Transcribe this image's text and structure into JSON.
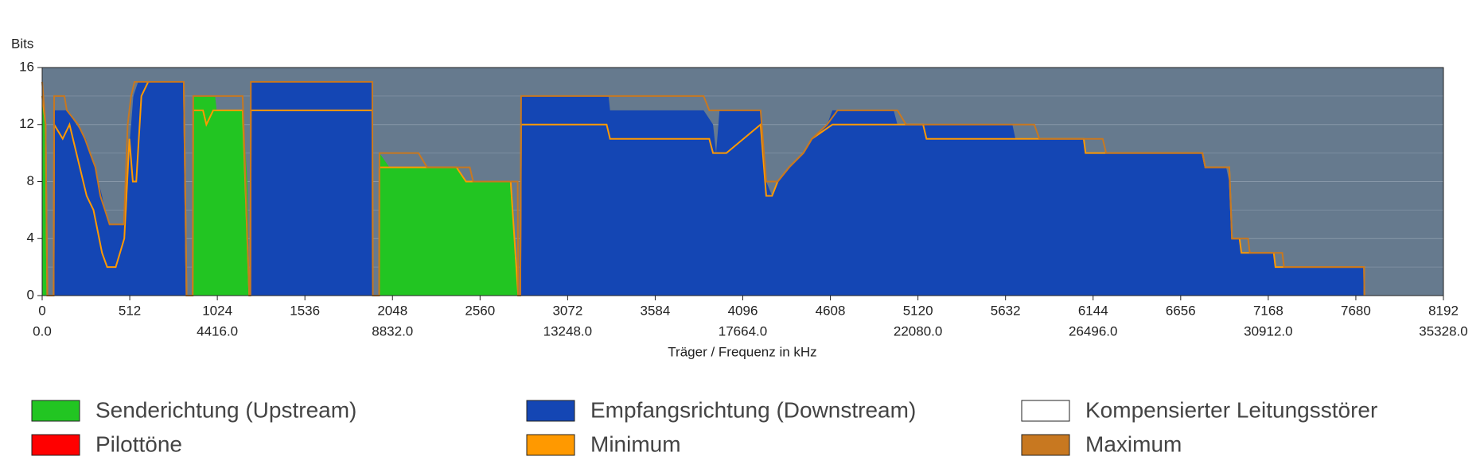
{
  "chart_data": {
    "type": "area",
    "ylabel": "Bits",
    "xlabel": "Träger / Frequenz in kHz",
    "xlim": [
      0,
      8192
    ],
    "xticks": [
      0,
      512,
      1024,
      1536,
      2048,
      2560,
      3072,
      3584,
      4096,
      4608,
      5120,
      5632,
      6144,
      6656,
      7168,
      7680,
      8192
    ],
    "x2lim": [
      0,
      35328
    ],
    "x2ticks": [
      {
        "value": 0,
        "label": "0.0"
      },
      {
        "value": 4416,
        "label": "4416.0"
      },
      {
        "value": 8832,
        "label": "8832.0"
      },
      {
        "value": 13248,
        "label": "13248.0"
      },
      {
        "value": 17664,
        "label": "17664.0"
      },
      {
        "value": 22080,
        "label": "22080.0"
      },
      {
        "value": 26496,
        "label": "26496.0"
      },
      {
        "value": 30912,
        "label": "30912.0"
      },
      {
        "value": 35328,
        "label": "35328.0"
      }
    ],
    "ylim": [
      0,
      16
    ],
    "yticks": [
      0,
      4,
      8,
      12,
      16
    ],
    "yminorticks": [
      2,
      6,
      10,
      14
    ],
    "grid": true,
    "series": [
      {
        "name": "Senderichtung (Upstream)",
        "color": "#22c522",
        "kind": "area",
        "x": [
          0,
          10,
          20,
          30,
          880,
          883,
          1011,
          1020,
          1172,
          1200,
          1211,
          1970,
          1972,
          2030,
          2422,
          2478,
          2739,
          2750,
          2783
        ],
        "values": [
          15,
          14,
          12,
          0,
          0,
          14,
          14,
          13,
          13,
          8,
          0,
          0,
          10,
          9,
          9,
          8,
          8,
          7,
          0
        ]
      },
      {
        "name": "Empfangsrichtung (Downstream)",
        "color": "#1446b4",
        "kind": "area",
        "x": [
          67,
          70,
          89,
          144,
          200,
          256,
          283,
          311,
          328,
          350,
          367,
          394,
          478,
          494,
          506,
          520,
          533,
          561,
          828,
          844,
          1217,
          1220,
          1930,
          1933,
          2795,
          2800,
          3311,
          3320,
          3867,
          3922,
          3940,
          3960,
          4000,
          4200,
          4233,
          4267,
          4300,
          4367,
          4450,
          4500,
          4589,
          4620,
          4978,
          5000,
          5672,
          5690,
          6089,
          6100,
          6783,
          6800,
          6922,
          6940,
          6956,
          7000,
          7011,
          7200,
          7210,
          7728,
          7730
        ],
        "values": [
          0,
          13,
          13,
          13,
          12,
          11,
          10,
          9,
          8,
          7,
          6,
          5,
          5,
          6,
          10,
          12,
          14,
          15,
          15,
          0,
          0,
          15,
          15,
          0,
          0,
          14,
          14,
          13,
          13,
          12,
          10,
          13,
          13,
          13,
          8,
          7,
          8,
          9,
          10,
          11,
          12,
          13,
          13,
          12,
          12,
          11,
          11,
          10,
          10,
          9,
          9,
          8,
          4,
          4,
          3,
          3,
          2,
          2,
          0
        ]
      },
      {
        "name": "Kompensierter Leitungsstörer",
        "color": "#ffffff",
        "kind": "area",
        "x": [],
        "values": []
      },
      {
        "name": "Pilottöne",
        "color": "#ff0000",
        "kind": "area",
        "x": [],
        "values": []
      },
      {
        "name": "Minimum",
        "color": "#ff9900",
        "kind": "line",
        "x": [
          0,
          20,
          30,
          67,
          70,
          120,
          160,
          220,
          260,
          300,
          350,
          380,
          430,
          480,
          510,
          530,
          550,
          580,
          620,
          828,
          844,
          880,
          883,
          940,
          960,
          1000,
          1172,
          1211,
          1217,
          1220,
          1930,
          1933,
          1970,
          1972,
          2422,
          2478,
          2739,
          2783,
          2795,
          2800,
          3300,
          3320,
          3900,
          3922,
          4000,
          4200,
          4233,
          4267,
          4300,
          4367,
          4450,
          4500,
          4620,
          5150,
          5170,
          5672,
          6089,
          6100,
          6783,
          6800,
          6940,
          6956,
          7000,
          7011,
          7200,
          7210,
          7728,
          7730
        ],
        "values": [
          14,
          12,
          0,
          0,
          12,
          11,
          12,
          9,
          7,
          6,
          3,
          2,
          2,
          4,
          11,
          8,
          8,
          14,
          15,
          15,
          0,
          0,
          13,
          13,
          12,
          13,
          13,
          0,
          0,
          13,
          13,
          0,
          0,
          9,
          9,
          8,
          8,
          0,
          0,
          12,
          12,
          11,
          11,
          10,
          10,
          12,
          7,
          7,
          8,
          9,
          10,
          11,
          12,
          12,
          11,
          11,
          11,
          10,
          10,
          9,
          9,
          4,
          4,
          3,
          3,
          2,
          2,
          0
        ]
      },
      {
        "name": "Maximum",
        "color": "#c87820",
        "kind": "line",
        "x": [
          0,
          20,
          30,
          67,
          70,
          130,
          144,
          210,
          250,
          280,
          311,
          340,
          367,
          394,
          478,
          500,
          520,
          540,
          828,
          844,
          880,
          883,
          1172,
          1211,
          1217,
          1220,
          1930,
          1933,
          1970,
          1972,
          2200,
          2250,
          2500,
          2520,
          2780,
          2783,
          2795,
          2800,
          3867,
          3900,
          4200,
          4233,
          4300,
          4367,
          4450,
          4500,
          4589,
          4650,
          5000,
          5050,
          5800,
          5830,
          6200,
          6220,
          6783,
          6800,
          6940,
          6956,
          7050,
          7060,
          7250,
          7260,
          7728,
          7730
        ],
        "values": [
          15,
          12,
          0,
          0,
          14,
          14,
          13,
          12,
          11,
          10,
          9,
          7,
          6,
          5,
          5,
          12,
          14,
          15,
          15,
          0,
          0,
          14,
          14,
          0,
          0,
          15,
          15,
          0,
          0,
          10,
          10,
          9,
          9,
          8,
          8,
          0,
          0,
          14,
          14,
          13,
          13,
          8,
          8,
          9,
          10,
          11,
          12,
          13,
          13,
          12,
          12,
          11,
          11,
          10,
          10,
          9,
          9,
          4,
          4,
          3,
          3,
          2,
          2,
          0
        ]
      }
    ]
  }
}
